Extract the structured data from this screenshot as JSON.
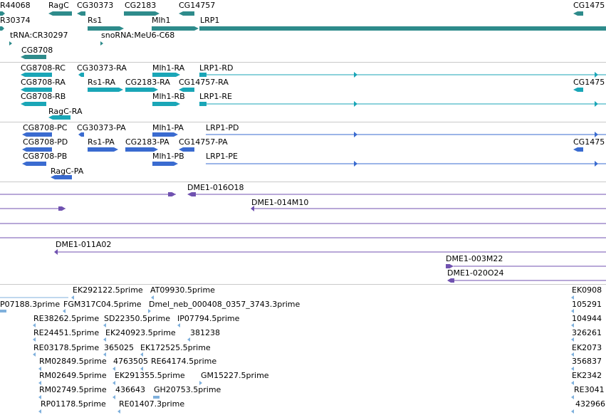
{
  "colors": {
    "gene": "#2e8b8b",
    "transcript": "#1aa6b7",
    "protein": "#3a6bd0",
    "clone": "#7052b0",
    "est": "#7fb0dc",
    "separator": "#c9c9c9"
  },
  "tracks": {
    "genes": {
      "labels": [
        "R44068",
        "RagC",
        "CG30373",
        "CG2183",
        "CG14757",
        "CG1475",
        "R30374",
        "Rs1",
        "Mlh1",
        "LRP1",
        "tRNA:CR30297",
        "snoRNA:MeU6-C68",
        "CG8708"
      ]
    },
    "transcripts": {
      "labels": [
        "CG8708-RC",
        "CG30373-RA",
        "Mlh1-RA",
        "LRP1-RD",
        "CG8708-RA",
        "Rs1-RA",
        "CG2183-RA",
        "CG14757-RA",
        "CG1475",
        "CG8708-RB",
        "Mlh1-RB",
        "LRP1-RE",
        "RagC-RA"
      ]
    },
    "proteins": {
      "labels": [
        "CG8708-PC",
        "CG30373-PA",
        "Mlh1-PA",
        "LRP1-PD",
        "CG8708-PD",
        "Rs1-PA",
        "CG2183-PA",
        "CG14757-PA",
        "CG1475",
        "CG8708-PB",
        "Mlh1-PB",
        "LRP1-PE",
        "RagC-PA"
      ]
    },
    "clones": {
      "labels": [
        "DME1-016O18",
        "DME1-014M10",
        "DME1-011A02",
        "DME1-003M22",
        "DME1-020O24"
      ]
    },
    "ests": {
      "labels": [
        "EK292122.5prime",
        "AT09930.5prime",
        "EK0908",
        "P07188.3prime",
        "FGM317C04.5prime",
        "Dmel_neb_000408_0357_3743.3prime",
        "105291",
        "RE38262.5prime",
        "SD22350.5prime",
        "IP07794.5prime",
        "104944",
        "RE24451.5prime",
        "EK240923.5prime",
        "381238",
        "326261",
        "RE03178.5prime",
        "365025",
        "EK172525.5prime",
        "EK2073",
        "RM02849.5prime",
        "4763505",
        "RE64174.5prime",
        "356837",
        "RM02649.5prime",
        "EK291355.5prime",
        "GM15227.5prime",
        "EK2342",
        "RM02749.5prime",
        "436643",
        "GH20753.5prime",
        "RE3041",
        "RP01178.5prime",
        "RE01407.3prime",
        "432966"
      ]
    }
  }
}
